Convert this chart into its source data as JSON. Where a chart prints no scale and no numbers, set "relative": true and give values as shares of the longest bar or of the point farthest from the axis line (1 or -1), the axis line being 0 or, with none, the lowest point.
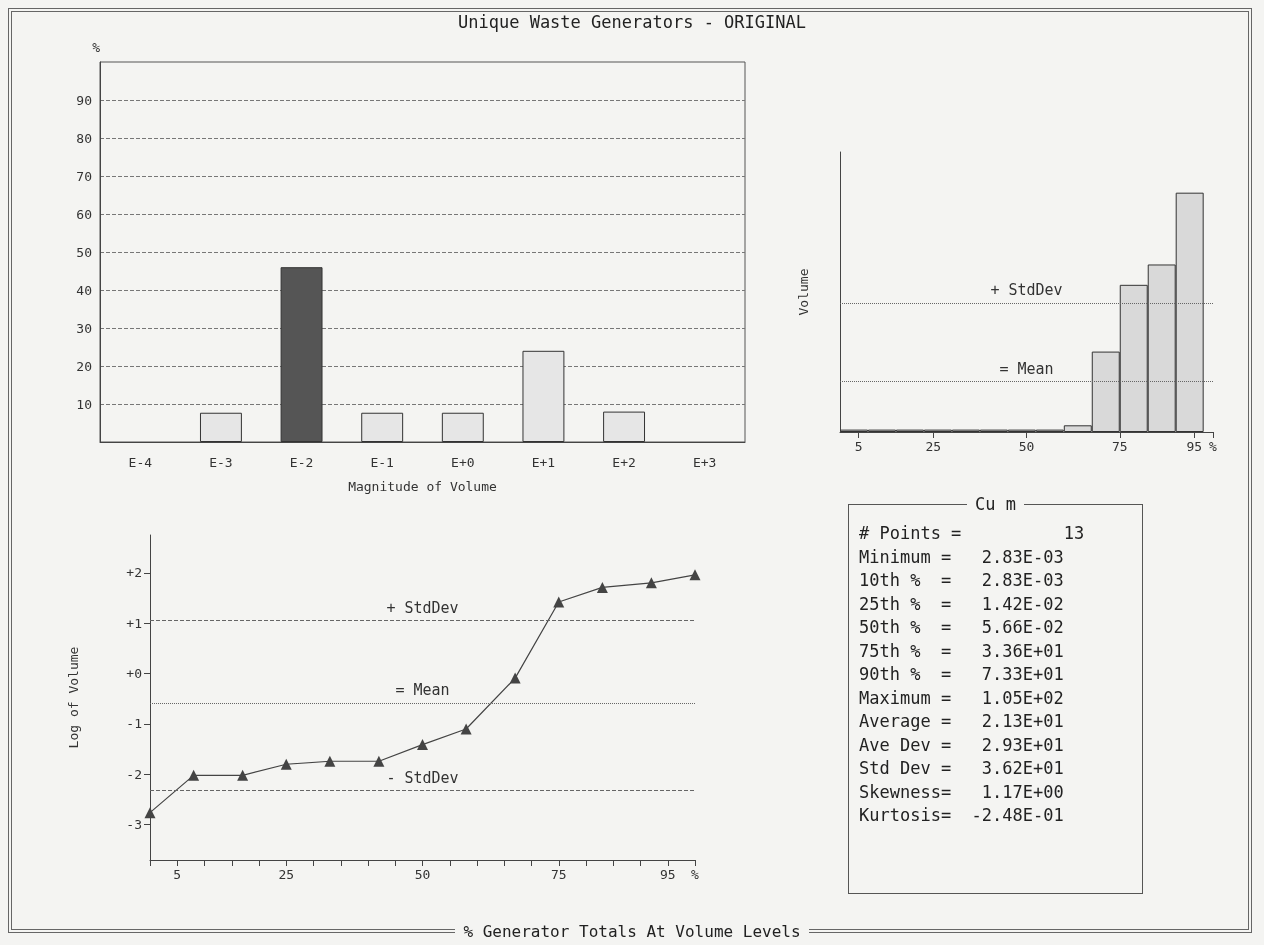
{
  "chart_data": [
    {
      "type": "bar",
      "title": "Unique Waste Generators - ORIGINAL",
      "xlabel": "Magnitude of Volume",
      "ylabel": "%",
      "categories": [
        "E-4",
        "E-3",
        "E-2",
        "E-1",
        "E+0",
        "E+1",
        "E+2",
        "E+3"
      ],
      "values": [
        0,
        7.7,
        46,
        7.7,
        7.7,
        24,
        8,
        0
      ],
      "colors": [
        "#e6e6e6",
        "#e6e6e6",
        "#555555",
        "#e6e6e6",
        "#e6e6e6",
        "#e6e6e6",
        "#e6e6e6",
        "#e6e6e6"
      ],
      "ylim": [
        0,
        100
      ],
      "yticks": [
        10,
        20,
        30,
        40,
        50,
        60,
        70,
        80,
        90
      ],
      "grid": "y",
      "annotations": [
        "% Generator Totals At Volume Levels"
      ]
    },
    {
      "type": "bar",
      "ylabel": "Volume",
      "relative": true,
      "color": "#d9d9d9",
      "x": [
        3.75,
        11.25,
        18.75,
        26.25,
        33.75,
        41.25,
        48.75,
        56.25,
        63.75,
        71.25,
        78.75,
        86.25,
        93.75
      ],
      "values": [
        0.01,
        0.01,
        0.01,
        0.01,
        0.01,
        0.01,
        0.01,
        0.01,
        0.028,
        0.336,
        0.615,
        0.7,
        1
      ],
      "xlim": [
        0,
        100
      ],
      "xticks": [
        5,
        25,
        50,
        75,
        95,
        {
          "value": 100,
          "label": "%"
        }
      ],
      "ref_lines": [
        {
          "axis": "y",
          "value": 0.54,
          "label": "+ StdDev",
          "line_style": "dotted"
        },
        {
          "axis": "y",
          "value": 0.21,
          "label": "= Mean",
          "line_style": "dotted"
        }
      ]
    },
    {
      "type": "line",
      "ylabel": "Log of Volume",
      "marker": "triangle",
      "line_style": "solid",
      "x": [
        0,
        8,
        17,
        25,
        33,
        42,
        50,
        58,
        67,
        75,
        83,
        92,
        100
      ],
      "series": [
        {
          "color": "#444444",
          "values": [
            -2.76,
            -2.02,
            -2.02,
            -1.8,
            -1.74,
            -1.74,
            -1.41,
            -1.1,
            -0.09,
            1.42,
            1.71,
            1.8,
            1.96
          ]
        }
      ],
      "ylim": [
        -3.7,
        2.75
      ],
      "yticks": [
        {
          "value": -3,
          "label": "-3"
        },
        {
          "value": -2,
          "label": "-2"
        },
        {
          "value": -1,
          "label": "-1"
        },
        {
          "value": 0,
          "label": "+0"
        },
        {
          "value": 1,
          "label": "+1"
        },
        {
          "value": 2,
          "label": "+2"
        }
      ],
      "xlim": [
        0,
        100
      ],
      "xticks": [
        {
          "value": 0,
          "label": null
        },
        5,
        {
          "value": 10,
          "label": null
        },
        {
          "value": 15,
          "label": null
        },
        {
          "value": 20,
          "label": null
        },
        25,
        {
          "value": 30,
          "label": null
        },
        {
          "value": 35,
          "label": null
        },
        {
          "value": 40,
          "label": null
        },
        {
          "value": 45,
          "label": null
        },
        50,
        {
          "value": 55,
          "label": null
        },
        {
          "value": 60,
          "label": null
        },
        {
          "value": 65,
          "label": null
        },
        {
          "value": 70,
          "label": null
        },
        75,
        {
          "value": 80,
          "label": null
        },
        {
          "value": 85,
          "label": null
        },
        {
          "value": 90,
          "label": null
        },
        95,
        {
          "value": 100,
          "label": "%"
        }
      ],
      "ref_lines": [
        {
          "axis": "y",
          "value": 1.06,
          "label": "+ StdDev",
          "line_style": "dashed"
        },
        {
          "axis": "y",
          "value": -0.58,
          "label": "= Mean",
          "line_style": "dotted"
        },
        {
          "axis": "y",
          "value": -2.32,
          "label": "- StdDev",
          "line_style": "dashed"
        }
      ]
    },
    {
      "type": "other",
      "title": "Cu m",
      "annotations": [
        "# Points =          13",
        "Minimum =   2.83E-03",
        "10th %  =   2.83E-03",
        "25th %  =   1.42E-02",
        "50th %  =   5.66E-02",
        "75th %  =   3.36E+01",
        "90th %  =   7.33E+01",
        "Maximum =   1.05E+02",
        "Average =   2.13E+01",
        "Ave Dev =   2.93E+01",
        "Std Dev =   3.62E+01",
        "Skewness=   1.17E+00",
        "Kurtosis=  -2.48E-01"
      ]
    }
  ]
}
